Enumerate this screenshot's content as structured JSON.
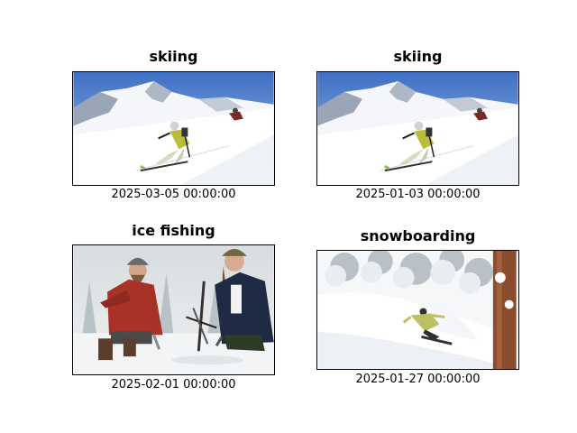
{
  "panels": [
    {
      "title": "skiing",
      "caption": "2025-03-05 00:00:00",
      "image": "skier-on-snowy-mountain-slope"
    },
    {
      "title": "skiing",
      "caption": "2025-01-03 00:00:00",
      "image": "skier-on-snowy-mountain-slope"
    },
    {
      "title": "ice fishing",
      "caption": "2025-02-01 00:00:00",
      "image": "two-people-ice-fishing"
    },
    {
      "title": "snowboarding",
      "caption": "2025-01-27 00:00:00",
      "image": "snowboarder-in-powder-forest"
    }
  ]
}
